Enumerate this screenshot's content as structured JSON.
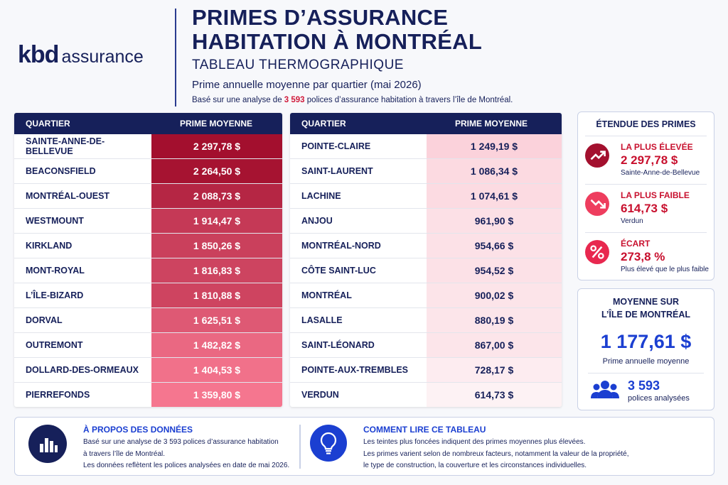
{
  "logo": {
    "brand": "kbd",
    "word": "assurance"
  },
  "header": {
    "title_lines": [
      "PRIMES D’ASSURANCE",
      "HABITATION À MONTRÉAL"
    ],
    "subtitle": "TABLEAU THERMOGRAPHIQUE",
    "description": "Prime annuelle moyenne par quartier (mai 2026)",
    "note_parts": [
      "Basé sur une analyse de",
      "3 593",
      "polices d’assurance habitation à travers l’île de Montréal."
    ]
  },
  "tables": [
    {
      "columns": [
        "QUARTIER",
        "PRIME MOYENNE"
      ],
      "rows": [
        [
          "SAINTE-ANNE-DE-BELLEVUE",
          "2 297,78 $"
        ],
        [
          "BEACONSFIELD",
          "2 264,50 $"
        ],
        [
          "MONTRÉAL-OUEST",
          "2 088,73 $"
        ],
        [
          "WESTMOUNT",
          "1 914,47 $"
        ],
        [
          "KIRKLAND",
          "1 850,26 $"
        ],
        [
          "MONT-ROYAL",
          "1 816,83 $"
        ],
        [
          "L’ÎLE-BIZARD",
          "1 810,88 $"
        ],
        [
          "DORVAL",
          "1 625,51 $"
        ],
        [
          "OUTREMONT",
          "1 482,82 $"
        ],
        [
          "DOLLARD-DES-ORMEAUX",
          "1 404,53 $"
        ],
        [
          "PIERREFONDS",
          "1 359,80 $"
        ]
      ]
    },
    {
      "columns": [
        "QUARTIER",
        "PRIME MOYENNE"
      ],
      "rows": [
        [
          "POINTE-CLAIRE",
          "1 249,19 $"
        ],
        [
          "SAINT-LAURENT",
          "1 086,34 $"
        ],
        [
          "LACHINE",
          "1 074,61 $"
        ],
        [
          "ANJOU",
          "961,90 $"
        ],
        [
          "MONTRÉAL-NORD",
          "954,66 $"
        ],
        [
          "CÔTE SAINT-LUC",
          "954,52 $"
        ],
        [
          "MONTRÉAL",
          "900,02 $"
        ],
        [
          "LASALLE",
          "880,19 $"
        ],
        [
          "SAINT-LÉONARD",
          "867,00 $"
        ],
        [
          "POINTE-AUX-TREMBLES",
          "728,17 $"
        ],
        [
          "VERDUN",
          "614,73 $"
        ]
      ]
    }
  ],
  "range_card": {
    "title": "ÉTENDUE DES PRIMES",
    "items": [
      {
        "label": "LA PLUS ÉLEVÉE",
        "value": "2 297,78 $",
        "sub": "Sainte-Anne-de-Bellevue"
      },
      {
        "label": "LA PLUS FAIBLE",
        "value": "614,73 $",
        "sub": "Verdun"
      },
      {
        "label": "ÉCART",
        "value": "273,8 %",
        "sub": "Plus élevé que le plus faible"
      }
    ]
  },
  "average_card": {
    "title_lines": [
      "MOYENNE SUR",
      "L’ÎLE DE MONTRÉAL"
    ],
    "value": "1 177,61 $",
    "caption": "Prime annuelle moyenne",
    "count": "3 593",
    "count_caption": "polices analysées"
  },
  "footer": {
    "about": {
      "heading": "À PROPOS DES DONNÉES",
      "lines": [
        "Basé sur une analyse de 3 593 polices d’assurance habitation",
        "à travers l’île de Montréal.",
        "Les données reflètent les polices analysées en date de mai 2026."
      ]
    },
    "howto": {
      "heading": "COMMENT LIRE CE TABLEAU",
      "lines": [
        "Les teintes plus foncées indiquent des primes moyennes plus élevées.",
        "Les primes varient selon de nombreux facteurs, notamment la valeur de la propriété,",
        "le type de construction, la couverture et les circonstances individuelles."
      ]
    }
  }
}
